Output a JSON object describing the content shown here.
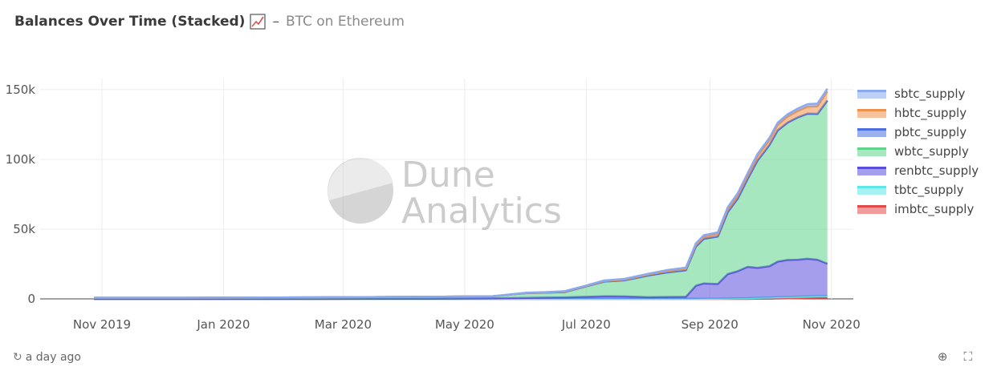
{
  "header": {
    "title": "Balances Over Time (Stacked)",
    "separator": "–",
    "query": "BTC on Ethereum"
  },
  "footer": {
    "updated": "a day ago",
    "refresh_icon": "refresh-icon",
    "zoom_icon": "zoom-icon",
    "fullscreen_icon": "fullscreen-icon"
  },
  "watermark": {
    "line1": "Dune",
    "line2": "Analytics"
  },
  "colors": {
    "imbtc_supply": "#e24a4a",
    "tbtc_supply": "#5ce8e8",
    "renbtc_supply": "#5a4fdc",
    "wbtc_supply": "#5fd38a",
    "pbtc_supply": "#4a6fe0",
    "hbtc_supply": "#f0914a",
    "sbtc_supply": "#8aaaf0"
  },
  "chart_data": {
    "type": "area",
    "stacked": true,
    "x_ticks": [
      "Nov 2019",
      "Jan 2020",
      "Mar 2020",
      "May 2020",
      "Jul 2020",
      "Sep 2020",
      "Nov 2020"
    ],
    "y_ticks": [
      "0",
      "50k",
      "100k",
      "150k"
    ],
    "ylim": [
      0,
      158000
    ],
    "grid": true,
    "legend_position": "right",
    "x": [
      "2019-10-28",
      "2019-11-15",
      "2019-12-15",
      "2020-01-15",
      "2020-02-15",
      "2020-03-15",
      "2020-04-15",
      "2020-05-01",
      "2020-05-15",
      "2020-06-01",
      "2020-06-10",
      "2020-06-20",
      "2020-07-01",
      "2020-07-10",
      "2020-07-20",
      "2020-08-01",
      "2020-08-10",
      "2020-08-20",
      "2020-08-25",
      "2020-08-29",
      "2020-09-05",
      "2020-09-10",
      "2020-09-15",
      "2020-09-20",
      "2020-09-25",
      "2020-10-01",
      "2020-10-05",
      "2020-10-10",
      "2020-10-15",
      "2020-10-20",
      "2020-10-25",
      "2020-10-30"
    ],
    "series": [
      {
        "name": "imbtc_supply",
        "values": [
          0,
          0,
          0,
          0,
          0,
          0,
          0,
          0,
          0,
          0,
          0,
          0,
          0,
          0,
          0,
          0,
          0,
          0,
          0,
          0,
          0,
          0,
          0,
          0,
          100,
          200,
          300,
          400,
          500,
          700,
          900,
          1000
        ]
      },
      {
        "name": "tbtc_supply",
        "values": [
          0,
          0,
          0,
          0,
          0,
          0,
          0,
          0,
          0,
          0,
          0,
          0,
          0,
          0,
          0,
          0,
          0,
          0,
          0,
          100,
          200,
          300,
          400,
          500,
          700,
          800,
          900,
          1000,
          1100,
          1100,
          1200,
          1200
        ]
      },
      {
        "name": "renbtc_supply",
        "values": [
          0,
          0,
          0,
          0,
          0,
          100,
          200,
          300,
          400,
          700,
          900,
          1100,
          1500,
          1900,
          1800,
          1200,
          1400,
          1500,
          9500,
          11000,
          10500,
          17500,
          19500,
          22500,
          21500,
          22500,
          25500,
          26500,
          26500,
          27000,
          26000,
          23000
        ]
      },
      {
        "name": "wbtc_supply",
        "values": [
          800,
          800,
          800,
          900,
          1100,
          1200,
          1300,
          1400,
          1500,
          3500,
          3500,
          3800,
          7500,
          10500,
          11500,
          15500,
          17500,
          19000,
          28000,
          32000,
          34000,
          44500,
          52000,
          63000,
          77000,
          87000,
          94000,
          98500,
          102000,
          104000,
          104500,
          117000
        ]
      },
      {
        "name": "pbtc_supply",
        "values": [
          0,
          0,
          0,
          0,
          0,
          0,
          0,
          0,
          0,
          0,
          0,
          0,
          0,
          0,
          0,
          0,
          0,
          0,
          0,
          0,
          0,
          0,
          0,
          0,
          0,
          0,
          0,
          0,
          0,
          0,
          0,
          0
        ]
      },
      {
        "name": "hbtc_supply",
        "values": [
          0,
          0,
          0,
          0,
          0,
          0,
          0,
          0,
          0,
          100,
          200,
          300,
          300,
          400,
          500,
          700,
          900,
          1100,
          1400,
          1600,
          1900,
          2200,
          2500,
          2800,
          3200,
          3600,
          4000,
          4300,
          4600,
          5000,
          5500,
          6500
        ]
      },
      {
        "name": "sbtc_supply",
        "values": [
          0,
          0,
          0,
          0,
          0,
          0,
          0,
          0,
          0,
          100,
          200,
          300,
          300,
          400,
          500,
          600,
          700,
          800,
          900,
          1000,
          1100,
          1200,
          1300,
          1400,
          1500,
          1500,
          1600,
          1600,
          1700,
          1800,
          1900,
          2000
        ]
      }
    ]
  }
}
